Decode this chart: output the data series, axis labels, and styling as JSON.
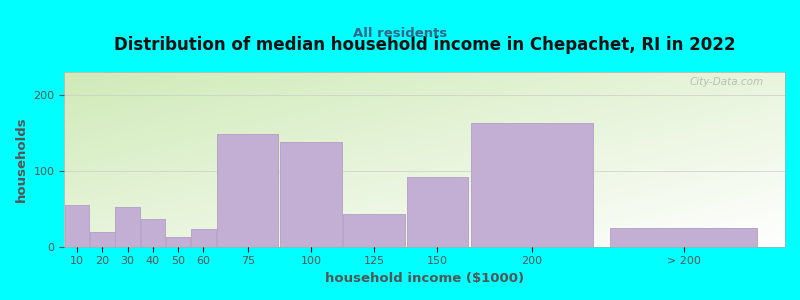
{
  "title": "Distribution of median household income in Chepachet, RI in 2022",
  "subtitle": "All residents",
  "xlabel": "household income ($1000)",
  "ylabel": "households",
  "background_color": "#00FFFF",
  "bar_color": "#c4afd4",
  "bar_edge_color": "#b09ec4",
  "categories": [
    "10",
    "20",
    "30",
    "40",
    "50",
    "60",
    "75",
    "100",
    "125",
    "150",
    "200",
    "> 200"
  ],
  "values": [
    55,
    20,
    52,
    37,
    13,
    23,
    148,
    138,
    43,
    92,
    163,
    25
  ],
  "bar_widths": [
    10,
    10,
    10,
    10,
    10,
    10,
    25,
    25,
    25,
    25,
    50,
    60
  ],
  "bar_lefts": [
    5,
    15,
    25,
    35,
    45,
    55,
    65,
    90,
    115,
    140,
    165,
    220
  ],
  "xlim": [
    5,
    290
  ],
  "ylim": [
    0,
    230
  ],
  "yticks": [
    0,
    100,
    200
  ],
  "title_fontsize": 12,
  "subtitle_fontsize": 9.5,
  "label_fontsize": 9.5,
  "tick_fontsize": 8,
  "watermark": "City-Data.com",
  "subtitle_color": "#336688",
  "title_color": "#111111",
  "label_color": "#555555",
  "tick_color": "#555555"
}
